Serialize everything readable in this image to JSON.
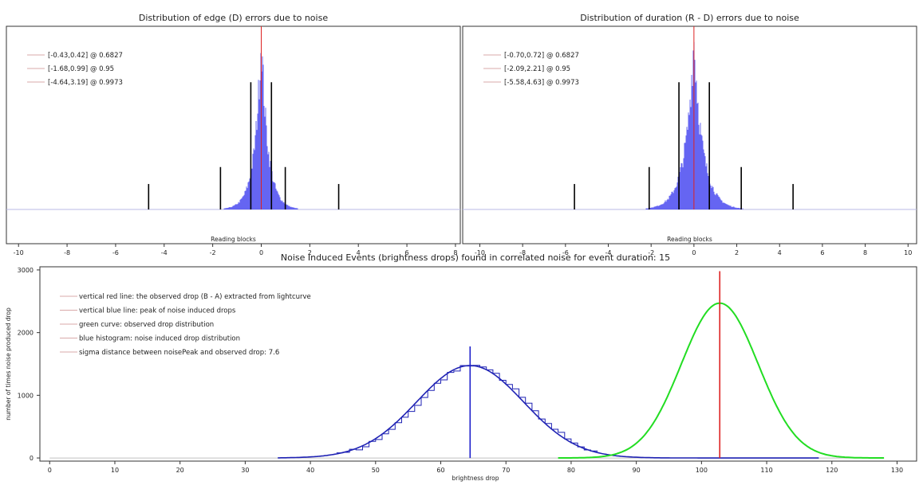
{
  "chart_data": [
    {
      "type": "histogram",
      "title": "Distribution of edge (D) errors due to noise",
      "xlabel": "Reading blocks",
      "xlim": [
        -10.5,
        8.2
      ],
      "xticks": [
        -10,
        -8,
        -6,
        -4,
        -2,
        0,
        2,
        4,
        6,
        8
      ],
      "ylim": [
        0,
        1.05
      ],
      "histogram": {
        "peak": 0,
        "spread_left": 0.3,
        "spread_right": 0.3,
        "color": "#4a4af0"
      },
      "center_line": {
        "x": 0,
        "color": "#dd2222"
      },
      "interval_markers": [
        {
          "lo": -0.43,
          "hi": 0.42,
          "height": 0.75
        },
        {
          "lo": -1.68,
          "hi": 0.99,
          "height": 0.25
        },
        {
          "lo": -4.64,
          "hi": 3.19,
          "height": 0.15
        }
      ],
      "legend": [
        "[-0.43,0.42] @ 0.6827",
        "[-1.68,0.99] @ 0.95",
        "[-4.64,3.19] @ 0.9973"
      ]
    },
    {
      "type": "histogram",
      "title": "Distribution of duration (R - D) errors due to noise",
      "xlabel": "Reading blocks",
      "xlim": [
        -10.8,
        10.4
      ],
      "xticks": [
        -10,
        -8,
        -6,
        -4,
        -2,
        0,
        2,
        4,
        6,
        8,
        10
      ],
      "ylim": [
        0,
        1.05
      ],
      "histogram": {
        "peak": 0,
        "spread_left": 0.45,
        "spread_right": 0.45,
        "color": "#4a4af0"
      },
      "center_line": {
        "x": 0,
        "color": "#dd2222"
      },
      "interval_markers": [
        {
          "lo": -0.7,
          "hi": 0.72,
          "height": 0.75
        },
        {
          "lo": -2.09,
          "hi": 2.21,
          "height": 0.25
        },
        {
          "lo": -5.58,
          "hi": 4.63,
          "height": 0.15
        }
      ],
      "legend": [
        "[-0.70,0.72] @ 0.6827",
        "[-2.09,2.21] @ 0.95",
        "[-5.58,4.63] @ 0.9973"
      ]
    },
    {
      "type": "line",
      "title": "Noise Induced Events (brightness drops) found in correlated noise for event duration: 15",
      "xlabel": "brightness drop",
      "ylabel": "number of times noise produced drop",
      "xlim": [
        -1.5,
        133
      ],
      "ylim": [
        -50,
        3050
      ],
      "xticks": [
        0,
        10,
        20,
        30,
        40,
        50,
        60,
        70,
        80,
        90,
        100,
        110,
        120,
        130
      ],
      "yticks": [
        0,
        1000,
        2000,
        3000
      ],
      "series": [
        {
          "name": "blue histogram: noise induced drop distribution",
          "kind": "gaussian",
          "mean": 64.5,
          "sigma": 8.2,
          "amplitude": 1475,
          "range": [
            35,
            118
          ],
          "color": "#1f22b4"
        },
        {
          "name": "green curve: observed drop distribution",
          "kind": "gaussian",
          "mean": 102.8,
          "sigma": 5.9,
          "amplitude": 2470,
          "range": [
            78,
            128
          ],
          "color": "#22dd22"
        }
      ],
      "vertical_lines": [
        {
          "name": "vertical blue line: peak of noise induced drops",
          "x": 64.5,
          "y_top": 1780,
          "color": "#1f22cc"
        },
        {
          "name": "vertical red line: the observed drop (B - A) extracted from lightcurve",
          "x": 102.8,
          "y_top": 2980,
          "color": "#dd2222"
        }
      ],
      "legend": [
        "vertical red line: the observed drop (B - A) extracted from lightcurve",
        "vertical blue line: peak of noise induced drops",
        "green curve: observed drop distribution",
        "blue histogram: noise induced drop distribution",
        "sigma distance between noisePeak and observed drop: 7.6"
      ]
    }
  ]
}
